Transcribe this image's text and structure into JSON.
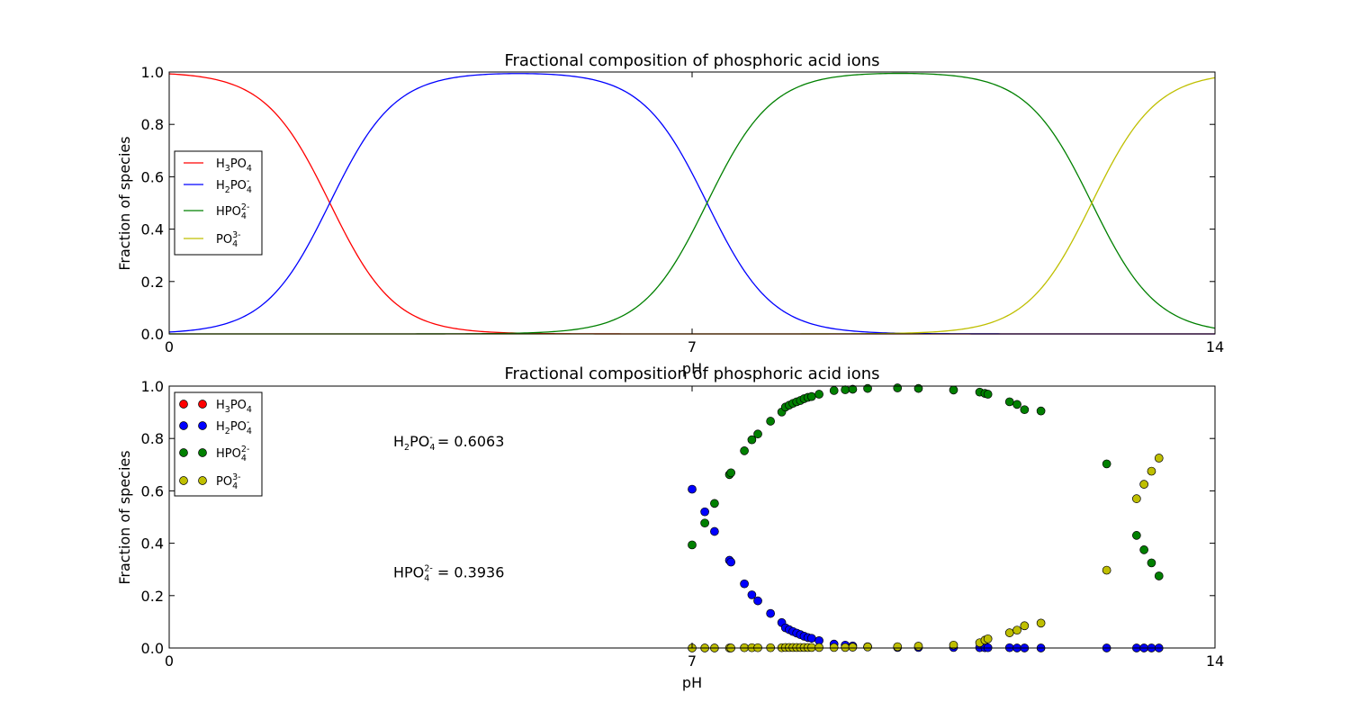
{
  "chart_data": [
    {
      "type": "line",
      "title": "Fractional composition of phosphoric acid ions",
      "xlabel": "pH",
      "ylabel": "Fraction of species",
      "xlim": [
        0,
        14
      ],
      "ylim": [
        0,
        1.0
      ],
      "xticks": [
        "0",
        "7",
        "14"
      ],
      "yticks": [
        "0.0",
        "0.2",
        "0.4",
        "0.6",
        "0.8",
        "1.0"
      ],
      "pKa": [
        2.15,
        7.2,
        12.35
      ],
      "legend_position": "center-left",
      "series": [
        {
          "name_base": "H",
          "name_sub1": "3",
          "name_mid": "PO",
          "name_sub2": "4",
          "name_sup": "",
          "color": "#ff0000"
        },
        {
          "name_base": "H",
          "name_sub1": "2",
          "name_mid": "PO",
          "name_sub2": "4",
          "name_sup": "-",
          "color": "#0000ff"
        },
        {
          "name_base": "",
          "name_sub1": "",
          "name_mid": "HPO",
          "name_sub2": "4",
          "name_sup": "2-",
          "color": "#008000"
        },
        {
          "name_base": "",
          "name_sub1": "",
          "name_mid": "PO",
          "name_sub2": "4",
          "name_sup": "3-",
          "color": "#bfbf00"
        }
      ]
    },
    {
      "type": "scatter",
      "title": "Fractional composition of phosphoric acid ions",
      "xlabel": "pH",
      "ylabel": "Fraction of species",
      "xlim": [
        0,
        14
      ],
      "ylim": [
        0,
        1.0
      ],
      "xticks": [
        "0",
        "7",
        "14"
      ],
      "yticks": [
        "0.0",
        "0.2",
        "0.4",
        "0.6",
        "0.8",
        "1.0"
      ],
      "legend_position": "upper-left",
      "x": [
        7.0,
        7.17,
        7.3,
        7.5,
        7.52,
        7.7,
        7.8,
        7.88,
        8.05,
        8.2,
        8.25,
        8.3,
        8.35,
        8.4,
        8.45,
        8.5,
        8.55,
        8.6,
        8.7,
        8.9,
        9.05,
        9.15,
        9.35,
        9.75,
        10.03,
        10.5,
        10.85,
        10.92,
        10.96,
        11.25,
        11.35,
        11.45,
        11.67
      ],
      "series": [
        {
          "name": "H3PO4",
          "color": "#ff0000",
          "values": [
            0,
            0,
            0,
            0,
            0,
            0,
            0,
            0,
            0,
            0,
            0,
            0,
            0,
            0,
            0,
            0,
            0,
            0,
            0,
            0,
            0,
            0,
            0,
            0,
            0,
            0,
            0,
            0,
            0,
            0,
            0,
            0,
            0
          ]
        },
        {
          "name": "H2PO4-",
          "color": "#0000ff",
          "values": [
            0.6063,
            0.52,
            0.445,
            0.335,
            0.328,
            0.245,
            0.203,
            0.18,
            0.132,
            0.097,
            0.077,
            0.07,
            0.063,
            0.057,
            0.051,
            0.045,
            0.04,
            0.037,
            0.028,
            0.015,
            0.011,
            0.008,
            0.005,
            0.002,
            0.002,
            0.002,
            0.001,
            0.001,
            0.001,
            0.001,
            0.0,
            0.0,
            0.0
          ]
        },
        {
          "name": "HPO42-",
          "color": "#008000",
          "values": [
            0.3936,
            0.477,
            0.552,
            0.662,
            0.669,
            0.753,
            0.795,
            0.817,
            0.866,
            0.901,
            0.92,
            0.927,
            0.934,
            0.94,
            0.945,
            0.952,
            0.957,
            0.96,
            0.969,
            0.983,
            0.986,
            0.988,
            0.991,
            0.993,
            0.991,
            0.985,
            0.977,
            0.972,
            0.969,
            0.94,
            0.93,
            0.91,
            0.905
          ]
        },
        {
          "name": "PO43-",
          "color": "#bfbf00",
          "values": [
            0.0,
            0.0,
            0.0,
            0.0,
            0.0,
            0.001,
            0.001,
            0.001,
            0.001,
            0.001,
            0.002,
            0.002,
            0.002,
            0.002,
            0.002,
            0.002,
            0.002,
            0.002,
            0.002,
            0.002,
            0.002,
            0.003,
            0.004,
            0.005,
            0.007,
            0.011,
            0.02,
            0.03,
            0.035,
            0.058,
            0.068,
            0.085,
            0.095
          ]
        }
      ],
      "extra_points": {
        "x": [
          12.55,
          12.95,
          13.05,
          13.15,
          13.25
        ],
        "series": [
          {
            "name": "H2PO4-",
            "color": "#0000ff",
            "values": [
              0.0,
              0.0,
              0.0,
              0.0,
              0.0
            ]
          },
          {
            "name": "HPO42-",
            "color": "#008000",
            "values": [
              0.703,
              0.43,
              0.375,
              0.325,
              0.275
            ]
          },
          {
            "name": "PO43-",
            "color": "#bfbf00",
            "values": [
              0.297,
              0.57,
              0.625,
              0.675,
              0.725
            ]
          }
        ]
      },
      "annotations": [
        {
          "species_pre": "H",
          "species_sub1": "2",
          "species_mid": "PO",
          "species_sub2": "4",
          "species_sup": "-",
          "value_text": " = 0.6063",
          "x_data": 3.0,
          "y_data": 0.77
        },
        {
          "species_pre": "",
          "species_sub1": "",
          "species_mid": "HPO",
          "species_sub2": "4",
          "species_sup": "2-",
          "value_text": "  = 0.3936",
          "x_data": 3.0,
          "y_data": 0.27
        }
      ]
    }
  ]
}
